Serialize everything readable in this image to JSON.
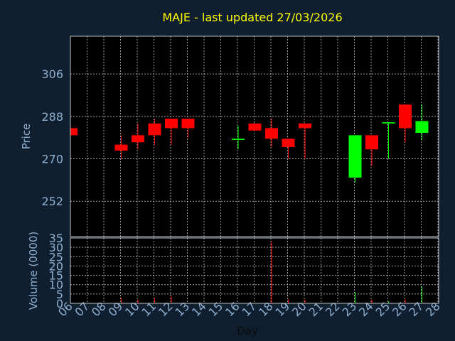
{
  "chart_data": {
    "type": "candlestick",
    "title": "MAJE - last updated 27/03/2026",
    "xlabel": "Day",
    "x_ticks": [
      "06",
      "07",
      "08",
      "09",
      "10",
      "11",
      "12",
      "13",
      "14",
      "15",
      "16",
      "17",
      "18",
      "19",
      "20",
      "21",
      "22",
      "23",
      "24",
      "25",
      "26",
      "27",
      "28"
    ],
    "price_panel": {
      "ylabel": "Price",
      "ylim": [
        237,
        322
      ],
      "y_ticks": [
        252,
        270,
        288,
        306
      ],
      "candles": [
        {
          "day": 6,
          "open": 283,
          "close": 280,
          "high": 283,
          "low": 280
        },
        {
          "day": 9,
          "open": 276,
          "close": 273.5,
          "high": 280,
          "low": 270
        },
        {
          "day": 10,
          "open": 280,
          "close": 277,
          "high": 285,
          "low": 274
        },
        {
          "day": 11,
          "open": 285,
          "close": 280,
          "high": 287,
          "low": 276
        },
        {
          "day": 12,
          "open": 287,
          "close": 283,
          "high": 287,
          "low": 276
        },
        {
          "day": 13,
          "open": 287,
          "close": 283,
          "high": 287,
          "low": 279
        },
        {
          "day": 16,
          "open": 278,
          "close": 278.5,
          "high": 284,
          "low": 274
        },
        {
          "day": 17,
          "open": 285,
          "close": 282,
          "high": 285,
          "low": 282
        },
        {
          "day": 18,
          "open": 283,
          "close": 278.5,
          "high": 287,
          "low": 275
        },
        {
          "day": 19,
          "open": 278.5,
          "close": 275,
          "high": 278.5,
          "low": 270
        },
        {
          "day": 20,
          "open": 285,
          "close": 283,
          "high": 285,
          "low": 270
        },
        {
          "day": 23,
          "open": 262,
          "close": 280,
          "high": 280,
          "low": 260
        },
        {
          "day": 24,
          "open": 280,
          "close": 274,
          "high": 280,
          "low": 267
        },
        {
          "day": 25,
          "open": 285,
          "close": 285.5,
          "high": 285.5,
          "low": 270
        },
        {
          "day": 26,
          "open": 293,
          "close": 283,
          "high": 293,
          "low": 277
        },
        {
          "day": 27,
          "open": 281,
          "close": 286,
          "high": 293,
          "low": 278
        }
      ]
    },
    "volume_panel": {
      "ylabel": "Volume (0000)",
      "ylim": [
        0,
        35
      ],
      "y_ticks": [
        0,
        5,
        10,
        15,
        20,
        25,
        30,
        35
      ],
      "bars": [
        {
          "day": 9,
          "value": 3,
          "dir": "down"
        },
        {
          "day": 10,
          "value": 2,
          "dir": "down"
        },
        {
          "day": 11,
          "value": 3,
          "dir": "down"
        },
        {
          "day": 12,
          "value": 4,
          "dir": "down"
        },
        {
          "day": 18,
          "value": 33,
          "dir": "down"
        },
        {
          "day": 19,
          "value": 2,
          "dir": "down"
        },
        {
          "day": 20,
          "value": 2,
          "dir": "down"
        },
        {
          "day": 23,
          "value": 6,
          "dir": "up"
        },
        {
          "day": 24,
          "value": 2,
          "dir": "down"
        },
        {
          "day": 25,
          "value": 1,
          "dir": "up"
        },
        {
          "day": 26,
          "value": 2,
          "dir": "down"
        },
        {
          "day": 27,
          "value": 9,
          "dir": "up"
        }
      ]
    },
    "grid": true,
    "colors": {
      "background": "#0f1f30",
      "plot_background": "#000000",
      "up": "#00ff00",
      "down": "#ff0000",
      "grid": "#a0a0a0",
      "title": "#ffff00",
      "axis_text": "#8fb0d0"
    }
  }
}
